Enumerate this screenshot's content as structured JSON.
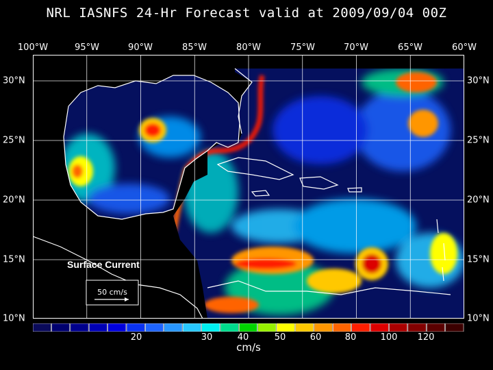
{
  "title": "NRL IASNFS  24-Hr Forecast valid at 2009/09/04 00Z",
  "lon_labels": [
    "100°W",
    "95°W",
    "90°W",
    "85°W",
    "80°W",
    "75°W",
    "70°W",
    "65°W",
    "60°W"
  ],
  "lat_labels": [
    "30°N",
    "25°N",
    "20°N",
    "15°N",
    "10°N"
  ],
  "map": {
    "legend_title": "Surface Current",
    "scale_label": "50 cm/s"
  },
  "colorbar": {
    "ticks": [
      "20",
      "30",
      "40",
      "50",
      "60",
      "80",
      "100",
      "120"
    ],
    "unit": "cm/s",
    "colors": [
      "#0a0a5a",
      "#00006e",
      "#00008c",
      "#0000b4",
      "#0000dc",
      "#0a32f0",
      "#1e64ff",
      "#2896ff",
      "#28c8ff",
      "#00f0f0",
      "#00dc8c",
      "#00d200",
      "#96f000",
      "#ffff00",
      "#ffc800",
      "#ff9600",
      "#ff6400",
      "#ff1e00",
      "#dc0000",
      "#aa0000",
      "#820000",
      "#5a0000",
      "#3c0000"
    ]
  }
}
